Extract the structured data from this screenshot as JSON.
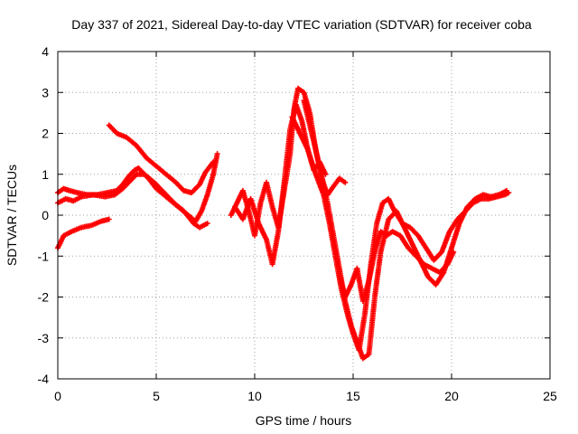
{
  "chart_data": {
    "type": "scatter",
    "title": "Day 337 of 2021, Sidereal Day-to-day VTEC variation (SDTVAR) for receiver coba",
    "xlabel": "GPS time / hours",
    "ylabel": "SDTVAR / TECUs",
    "xlim": [
      0,
      25
    ],
    "ylim": [
      -4,
      4
    ],
    "x_ticks": [
      "0",
      "5",
      "10",
      "15",
      "20",
      "25"
    ],
    "y_ticks": [
      "4",
      "3",
      "2",
      "1",
      "0",
      "-1",
      "-2",
      "-3",
      "-4"
    ],
    "grid": true,
    "marker": "plus",
    "color": "#ff0000",
    "series": [
      {
        "x": [
          0.0,
          0.3,
          0.6,
          1.0,
          1.5,
          2.0,
          2.5,
          3.0,
          3.3,
          3.6,
          3.9,
          4.1,
          4.3,
          4.6,
          5.0,
          5.5,
          6.0,
          6.5,
          7.0,
          7.3,
          7.6,
          7.9,
          8.1
        ],
        "y": [
          0.55,
          0.65,
          0.6,
          0.55,
          0.5,
          0.5,
          0.55,
          0.6,
          0.75,
          0.95,
          1.1,
          1.15,
          1.05,
          0.9,
          0.65,
          0.45,
          0.25,
          0.05,
          -0.15,
          0.1,
          0.5,
          1.0,
          1.5
        ]
      },
      {
        "x": [
          0.0,
          0.4,
          0.8,
          1.2,
          1.8,
          2.4,
          2.9,
          3.3,
          3.7,
          4.0,
          4.4,
          4.9,
          5.4,
          5.9,
          6.4,
          6.9,
          7.2,
          7.6
        ],
        "y": [
          0.3,
          0.4,
          0.35,
          0.45,
          0.5,
          0.45,
          0.5,
          0.65,
          0.85,
          1.0,
          1.0,
          0.8,
          0.55,
          0.3,
          0.1,
          -0.2,
          -0.3,
          -0.2
        ]
      },
      {
        "x": [
          0.0,
          0.3,
          0.7,
          1.2,
          1.7,
          2.2,
          2.6
        ],
        "y": [
          -0.8,
          -0.5,
          -0.4,
          -0.3,
          -0.25,
          -0.15,
          -0.1
        ]
      },
      {
        "x": [
          2.6,
          3.0,
          3.5,
          4.0,
          4.5,
          5.0,
          5.5,
          6.0,
          6.4,
          6.8,
          7.2,
          7.5,
          7.9
        ],
        "y": [
          2.2,
          2.0,
          1.9,
          1.7,
          1.4,
          1.2,
          1.0,
          0.8,
          0.6,
          0.55,
          0.75,
          1.05,
          1.3
        ]
      },
      {
        "x": [
          8.8,
          9.1,
          9.4,
          9.7,
          10.0,
          10.3,
          10.6,
          10.9,
          11.2,
          11.5,
          11.8,
          12.0,
          12.2,
          12.5,
          12.8,
          13.1,
          13.4,
          13.7,
          14.0,
          14.3,
          14.6
        ],
        "y": [
          0.0,
          0.3,
          0.6,
          0.1,
          -0.5,
          0.3,
          0.8,
          0.2,
          -0.3,
          0.6,
          1.5,
          2.6,
          3.1,
          3.0,
          2.5,
          1.6,
          0.9,
          0.5,
          0.7,
          0.9,
          0.8
        ]
      },
      {
        "x": [
          9.0,
          9.4,
          9.8,
          10.2,
          10.6,
          10.9,
          11.2,
          11.5,
          11.8,
          12.1,
          12.4,
          12.7,
          13.0,
          13.3,
          13.6
        ],
        "y": [
          0.2,
          -0.1,
          0.4,
          -0.2,
          -0.6,
          -1.2,
          -0.4,
          0.8,
          2.1,
          2.7,
          2.3,
          1.6,
          1.1,
          1.3,
          1.0
        ]
      },
      {
        "x": [
          11.9,
          12.3,
          12.7,
          13.1,
          13.5,
          13.8,
          14.1,
          14.4,
          14.7,
          15.0,
          15.3,
          15.6,
          15.9,
          16.2,
          16.5,
          16.8,
          17.1,
          17.5,
          17.9,
          18.3,
          18.7,
          19.1,
          19.5,
          19.9,
          20.3,
          20.7,
          21.1,
          21.5,
          21.9,
          22.3,
          22.7,
          22.9
        ],
        "y": [
          2.4,
          2.0,
          1.6,
          1.0,
          0.5,
          -0.2,
          -1.0,
          -1.8,
          -2.4,
          -2.9,
          -3.3,
          -2.4,
          -1.2,
          -0.2,
          0.3,
          0.4,
          0.1,
          -0.2,
          -0.3,
          -0.5,
          -0.8,
          -1.1,
          -0.9,
          -0.4,
          -0.1,
          0.1,
          0.3,
          0.4,
          0.4,
          0.45,
          0.5,
          0.55
        ]
      },
      {
        "x": [
          12.5,
          12.9,
          13.3,
          13.7,
          14.0,
          14.3,
          14.6,
          14.9,
          15.2,
          15.5,
          15.8,
          16.1,
          16.4,
          16.8,
          17.2,
          17.6,
          18.0,
          18.4,
          18.8,
          19.2,
          19.6,
          20.0,
          20.4,
          20.8,
          21.2,
          21.6,
          22.0,
          22.4,
          22.8
        ],
        "y": [
          2.8,
          2.0,
          1.2,
          0.3,
          -0.5,
          -1.3,
          -2.1,
          -2.7,
          -3.1,
          -3.5,
          -3.4,
          -2.0,
          -0.9,
          -0.1,
          0.1,
          -0.3,
          -0.7,
          -1.1,
          -1.5,
          -1.7,
          -1.4,
          -0.8,
          -0.2,
          0.2,
          0.4,
          0.5,
          0.45,
          0.5,
          0.6
        ]
      },
      {
        "x": [
          14.3,
          14.6,
          14.9,
          15.2,
          15.5,
          15.8,
          16.1,
          16.4,
          16.7,
          17.0,
          17.4,
          17.8,
          18.2,
          18.6,
          19.0,
          19.4,
          19.8,
          20.1
        ],
        "y": [
          -1.5,
          -2.0,
          -1.7,
          -1.3,
          -2.1,
          -1.6,
          -0.9,
          -0.4,
          -0.5,
          -0.4,
          -0.5,
          -0.8,
          -1.0,
          -1.2,
          -1.3,
          -1.4,
          -1.2,
          -0.9
        ]
      }
    ]
  }
}
